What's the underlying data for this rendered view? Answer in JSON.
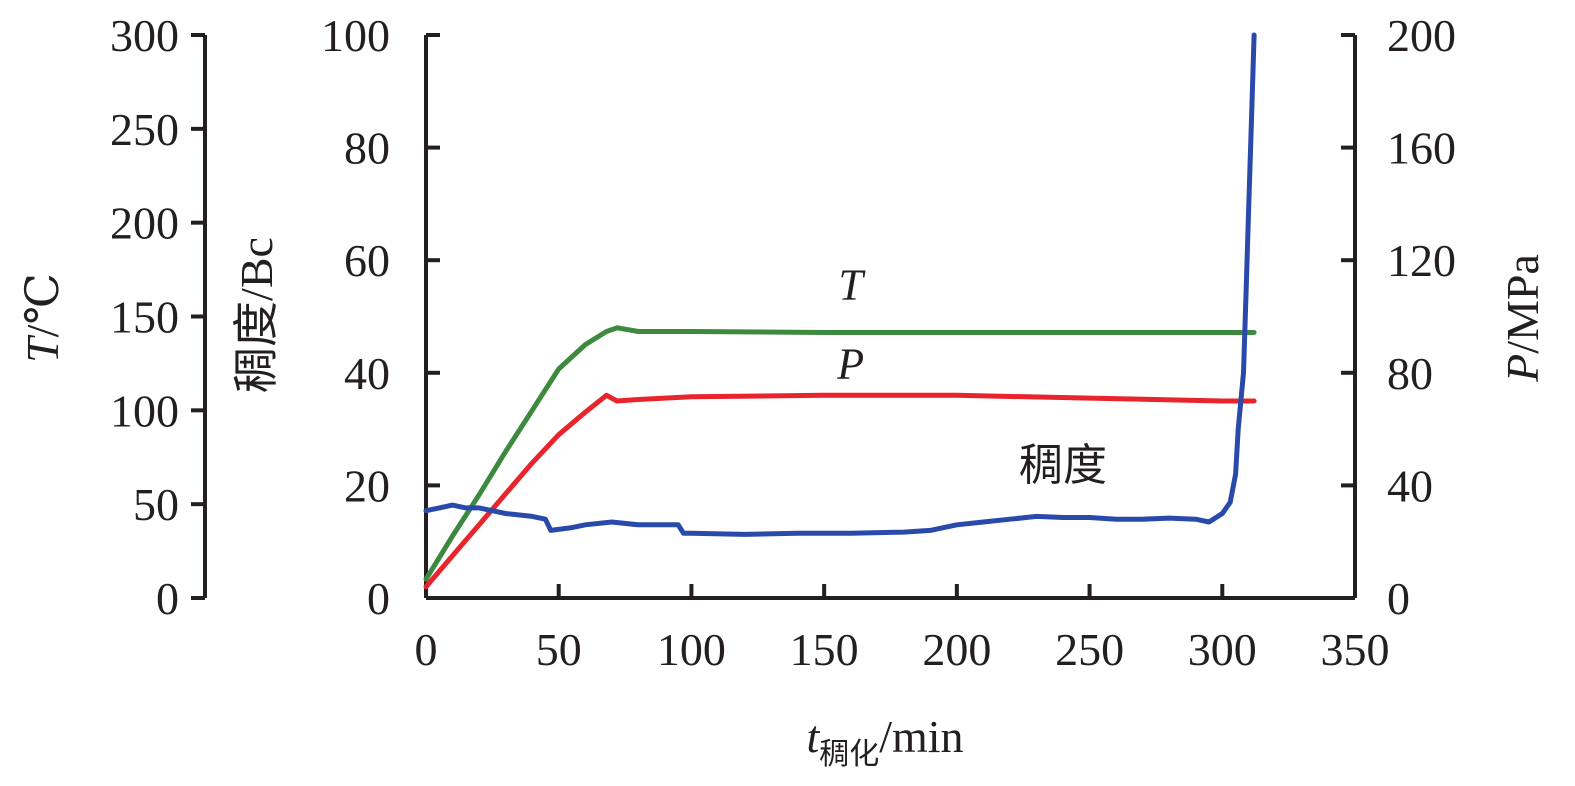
{
  "chart_data": {
    "type": "line",
    "x_axis": {
      "label_main": "t",
      "label_sub": "稠化",
      "label_unit": "/min",
      "range": [
        0,
        350
      ],
      "ticks": [
        0,
        50,
        100,
        150,
        200,
        250,
        300,
        350
      ],
      "tick_labels": [
        "0",
        "50",
        "100",
        "150",
        "200",
        "250",
        "300",
        "350"
      ]
    },
    "y_axes": {
      "temperature": {
        "label_main": "T",
        "label_unit": "/℃",
        "range": [
          0,
          300
        ],
        "ticks": [
          0,
          50,
          100,
          150,
          200,
          250,
          300
        ],
        "tick_labels": [
          "0",
          "50",
          "100",
          "150",
          "200",
          "250",
          "300"
        ]
      },
      "consistency": {
        "label": "稠度/Bc",
        "range": [
          0,
          100
        ],
        "ticks": [
          0,
          20,
          40,
          60,
          80,
          100
        ],
        "tick_labels": [
          "0",
          "20",
          "40",
          "60",
          "80",
          "100"
        ]
      },
      "pressure": {
        "label_main": "P",
        "label_unit": "/MPa",
        "range": [
          0,
          200
        ],
        "ticks": [
          0,
          40,
          80,
          120,
          160,
          200
        ],
        "tick_labels": [
          "0",
          "40",
          "80",
          "120",
          "160",
          "200"
        ]
      }
    },
    "series": [
      {
        "name": "T",
        "axis": "temperature",
        "color": "#3d8a3f",
        "x": [
          0,
          10,
          20,
          30,
          40,
          50,
          60,
          68,
          72,
          80,
          100,
          150,
          200,
          250,
          300,
          312
        ],
        "y": [
          10,
          33,
          55,
          78,
          100,
          122,
          135,
          142,
          144,
          142,
          142,
          141.5,
          141.5,
          141.5,
          141.5,
          141.5
        ]
      },
      {
        "name": "P",
        "axis": "pressure",
        "color": "#e8242c",
        "x": [
          0,
          10,
          20,
          30,
          40,
          50,
          60,
          68,
          72,
          80,
          100,
          150,
          200,
          250,
          300,
          312
        ],
        "y": [
          4,
          15,
          26,
          37,
          48,
          58,
          66,
          72,
          70,
          70.5,
          71.5,
          72,
          72,
          71,
          70,
          70
        ]
      },
      {
        "name": "稠度",
        "axis": "consistency",
        "color": "#2a4aab",
        "x": [
          0,
          5,
          10,
          15,
          20,
          25,
          30,
          40,
          45,
          47,
          55,
          60,
          70,
          80,
          95,
          97,
          100,
          120,
          140,
          160,
          180,
          190,
          200,
          210,
          220,
          230,
          240,
          250,
          260,
          270,
          280,
          290,
          295,
          300,
          303,
          305,
          306,
          308,
          309,
          310,
          311,
          312
        ],
        "y": [
          15.5,
          16,
          16.5,
          16,
          16,
          15.5,
          15,
          14.5,
          14,
          12,
          12.5,
          13,
          13.5,
          13,
          13,
          11.5,
          11.5,
          11.3,
          11.5,
          11.5,
          11.7,
          12,
          13,
          13.5,
          14,
          14.5,
          14.3,
          14.3,
          14,
          14,
          14.2,
          14,
          13.5,
          15,
          17,
          22,
          30,
          40,
          55,
          70,
          85,
          100
        ]
      }
    ],
    "annotations": [
      {
        "text": "T",
        "x": 160,
        "consistency_y": 53
      },
      {
        "text": "P",
        "x": 160,
        "consistency_y": 39
      },
      {
        "text": "稠度",
        "x": 240,
        "consistency_y": 21
      }
    ]
  }
}
